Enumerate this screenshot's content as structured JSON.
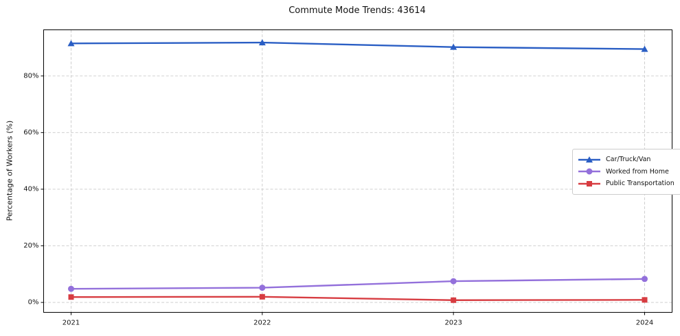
{
  "chart_data": {
    "type": "line",
    "title": "Commute Mode Trends: 43614",
    "xlabel": "",
    "ylabel": "Percentage of Workers (%)",
    "categories": [
      "2021",
      "2022",
      "2023",
      "2024"
    ],
    "series": [
      {
        "name": "Car/Truck/Van",
        "color": "#2a5ec4",
        "marker": "triangle",
        "values": [
          91.5,
          91.8,
          90.2,
          89.5
        ]
      },
      {
        "name": "Worked from Home",
        "color": "#9370db",
        "marker": "circle",
        "values": [
          4.8,
          5.2,
          7.5,
          8.3
        ]
      },
      {
        "name": "Public Transportation",
        "color": "#d73c41",
        "marker": "square",
        "values": [
          1.9,
          2.0,
          0.8,
          0.9
        ]
      }
    ],
    "yticks": [
      0,
      20,
      40,
      60,
      80
    ],
    "ytick_labels": [
      "0%",
      "20%",
      "40%",
      "60%",
      "80%"
    ],
    "ylim": [
      -3.5,
      96.3
    ],
    "grid": true,
    "legend_position": "center-right"
  }
}
